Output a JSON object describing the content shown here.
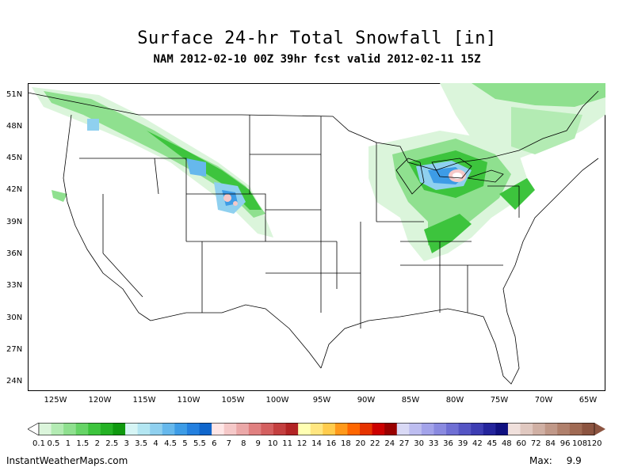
{
  "title": "Surface 24-hr Total Snowfall [in]",
  "subtitle": "NAM 2012-02-10 00Z 39hr fcst valid 2012-02-11 15Z",
  "latitude_labels": [
    "51N",
    "48N",
    "45N",
    "42N",
    "39N",
    "36N",
    "33N",
    "30N",
    "27N",
    "24N"
  ],
  "longitude_labels": [
    "125W",
    "120W",
    "115W",
    "110W",
    "105W",
    "100W",
    "95W",
    "90W",
    "85W",
    "80W",
    "75W",
    "70W",
    "65W"
  ],
  "colorbar": {
    "labels": [
      "0.1",
      "0.5",
      "1",
      "1.5",
      "2",
      "2.5",
      "3",
      "3.5",
      "4",
      "4.5",
      "5",
      "5.5",
      "6",
      "7",
      "8",
      "9",
      "10",
      "11",
      "12",
      "14",
      "16",
      "18",
      "20",
      "22",
      "24",
      "27",
      "30",
      "33",
      "36",
      "39",
      "42",
      "45",
      "48",
      "60",
      "72",
      "84",
      "96",
      "108",
      "120"
    ],
    "colors": [
      "#dbf5db",
      "#b3ebb3",
      "#8fe08f",
      "#66d466",
      "#3dc43d",
      "#24b224",
      "#0f990f",
      "#d6f5f5",
      "#b3e6f2",
      "#8fd0ef",
      "#66b8ec",
      "#3d9ce6",
      "#2480df",
      "#0f66cc",
      "#ffe6e6",
      "#f5c8c8",
      "#eba8a8",
      "#e08080",
      "#d46060",
      "#c44040",
      "#b22424",
      "#ffffb3",
      "#ffe680",
      "#ffcc4d",
      "#ff991a",
      "#ff6600",
      "#e63300",
      "#cc0000",
      "#990000",
      "#d9d9f5",
      "#bdbdf0",
      "#a3a3ea",
      "#8a8ae0",
      "#6f6fd4",
      "#5555c4",
      "#3d3db3",
      "#24249c",
      "#101080",
      "#f0e0dc",
      "#e0c8c0",
      "#d0b0a4",
      "#c09888",
      "#b0806c",
      "#a06a54",
      "#8c5440"
    ]
  },
  "footer": {
    "source": "InstantWeatherMaps.com",
    "max_label": "Max:",
    "max_value": "9.9"
  }
}
